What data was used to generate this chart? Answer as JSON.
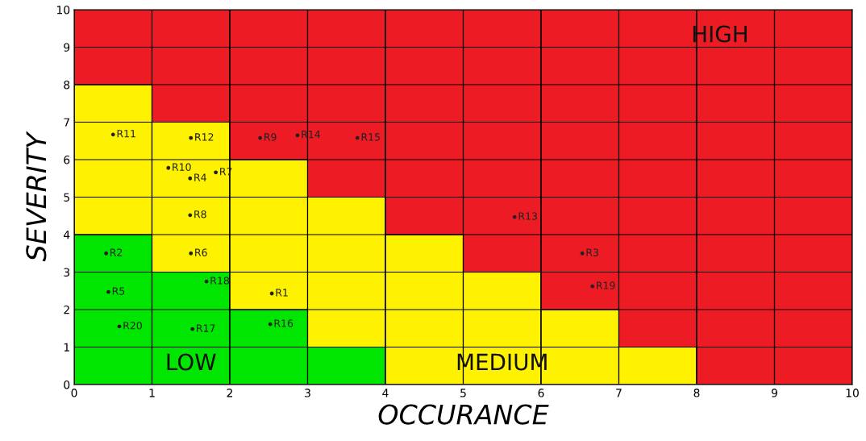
{
  "chart_data": {
    "type": "bar",
    "stacked": true,
    "xlabel": "OCCURANCE",
    "ylabel": "SEVERITY",
    "xlim": [
      0,
      10
    ],
    "ylim": [
      0,
      10
    ],
    "xticks": [
      0,
      1,
      2,
      3,
      4,
      5,
      6,
      7,
      8,
      9,
      10
    ],
    "yticks": [
      0,
      1,
      2,
      3,
      4,
      5,
      6,
      7,
      8,
      9,
      10
    ],
    "grid": true,
    "x": [
      0.5,
      1.5,
      2.5,
      3.5,
      4.5,
      5.5,
      6.5,
      7.5,
      8.5,
      9.5
    ],
    "series": [
      {
        "name": "LOW",
        "color": "#00e600",
        "values": [
          4,
          3,
          2,
          1,
          0,
          0,
          0,
          0,
          0,
          0
        ]
      },
      {
        "name": "MEDIUM",
        "color": "#fff200",
        "values": [
          4,
          4,
          4,
          4,
          4,
          3,
          2,
          1,
          0,
          0
        ]
      },
      {
        "name": "HIGH",
        "color": "#ed1c24",
        "values": [
          2,
          3,
          4,
          5,
          6,
          7,
          8,
          9,
          10,
          10
        ]
      },
      {
        "type": "scatter",
        "marker": "circle",
        "color": "#222222",
        "x": [
          0.5,
          1.5,
          2.39,
          2.87,
          3.64,
          1.21,
          1.49,
          1.82,
          1.49,
          5.66,
          0.41,
          1.5,
          6.53,
          0.44,
          1.7,
          2.54,
          6.66,
          0.58,
          1.52,
          2.52
        ],
        "values": [
          6.67,
          6.58,
          6.58,
          6.65,
          6.58,
          5.78,
          5.5,
          5.66,
          4.52,
          4.47,
          3.5,
          3.5,
          3.5,
          2.47,
          2.75,
          2.43,
          2.62,
          1.55,
          1.48,
          1.61
        ],
        "value_labels": [
          "R11",
          "R12",
          "R9",
          "R14",
          "R15",
          "R10",
          "R4",
          "R7",
          "R8",
          "R13",
          "R2",
          "R6",
          "R3",
          "R5",
          "R18",
          "R1",
          "R19",
          "R20",
          "R17",
          "R16"
        ]
      }
    ]
  }
}
